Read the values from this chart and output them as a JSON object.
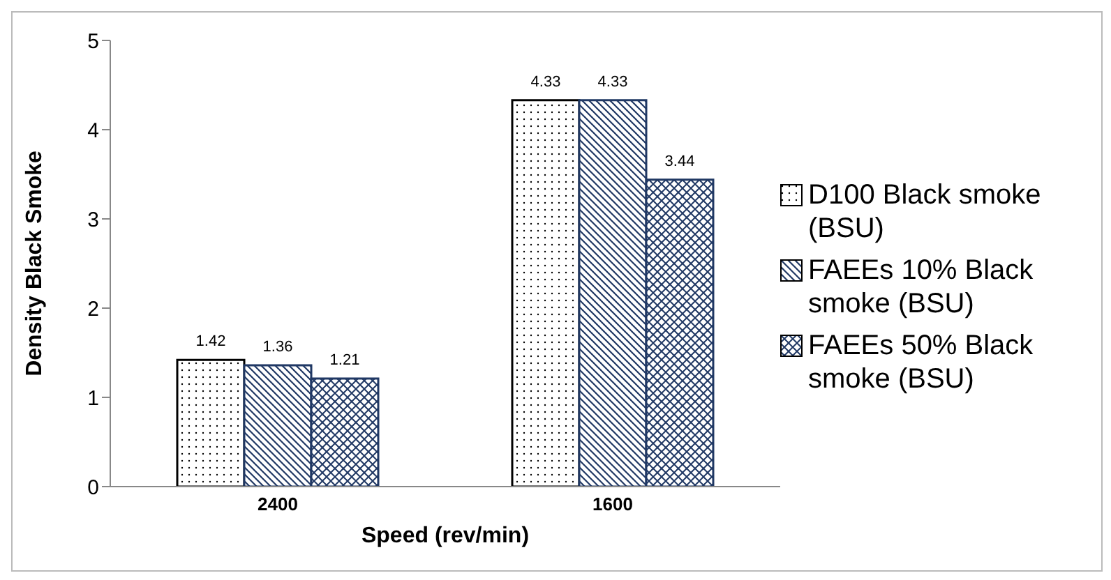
{
  "chart_data": {
    "type": "bar",
    "categories": [
      "2400",
      "1600"
    ],
    "xlabel": "Speed (rev/min)",
    "ylabel": "Density Black Smoke",
    "ylim": [
      0,
      5
    ],
    "yticks": [
      0,
      1,
      2,
      3,
      4,
      5
    ],
    "legend": "right",
    "data_labels": true,
    "series": [
      {
        "name": "D100 Black smoke (BSU)",
        "color": "#000000",
        "values": [
          1.42,
          4.33
        ]
      },
      {
        "name": "FAEEs 10% Black smoke (BSU)",
        "color": "#203864",
        "values": [
          1.36,
          4.33
        ]
      },
      {
        "name": "FAEEs 50% Black smoke (BSU)",
        "color": "#203864",
        "values": [
          1.21,
          3.44
        ]
      }
    ]
  }
}
